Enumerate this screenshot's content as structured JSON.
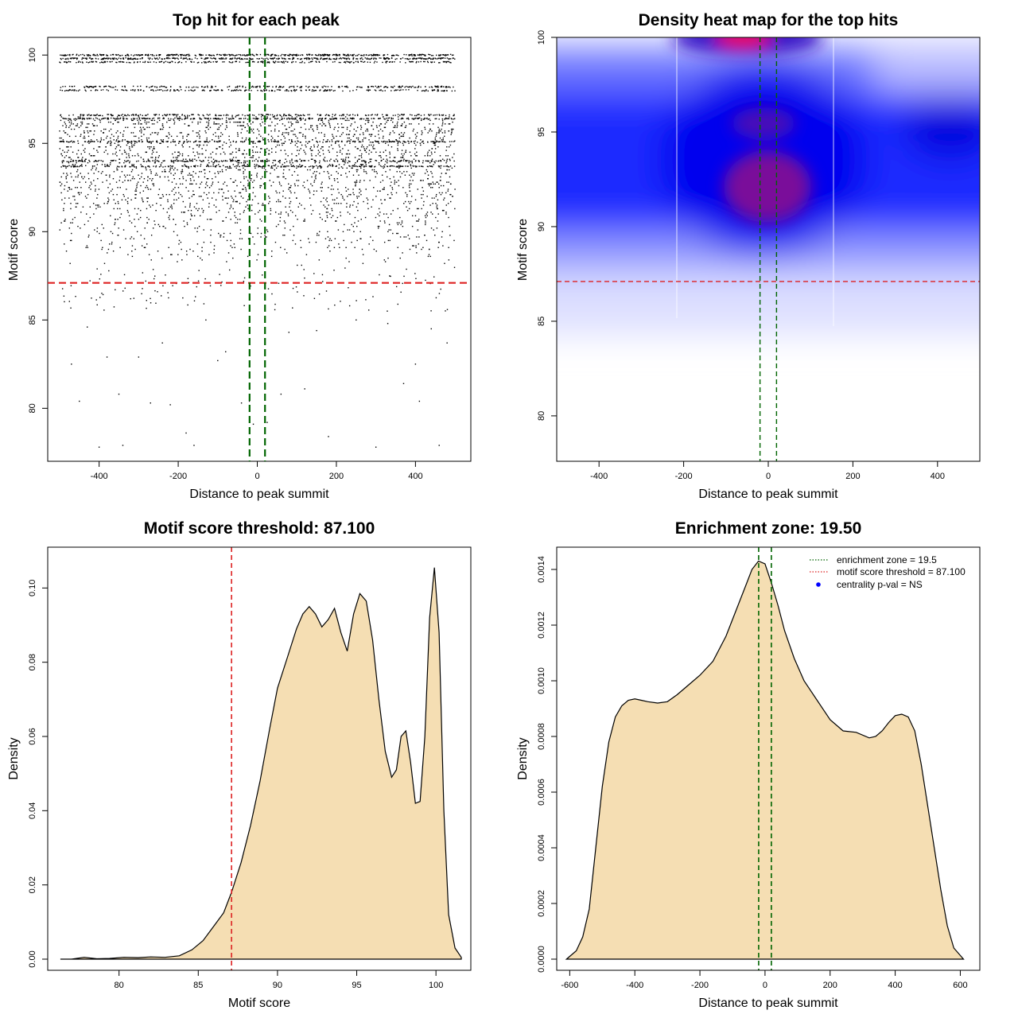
{
  "chart_data": [
    {
      "type": "scatter",
      "title": "Top hit for each peak",
      "xlabel": "Distance to peak summit",
      "ylabel": "Motif score",
      "xlim": [
        -530,
        540
      ],
      "ylim": [
        77,
        101
      ],
      "x_ticks": [
        -400,
        -200,
        0,
        200,
        400
      ],
      "y_ticks": [
        80,
        85,
        90,
        95,
        100
      ],
      "threshold_line": {
        "axis": "y",
        "value": 87.1,
        "color": "#dd2222"
      },
      "zone_lines": {
        "axis": "x",
        "values": [
          -19.5,
          19.5
        ],
        "color": "#006400"
      },
      "points_summary": {
        "x_range": [
          -500,
          500
        ],
        "dense_score_rows": [
          100,
          99.8,
          99.6,
          98.2,
          98.0,
          96.6,
          96.4,
          95.1,
          94.0,
          93.7
        ],
        "band_score_range": [
          88,
          96.5
        ],
        "sparse_points": [
          [
            -400,
            77.8
          ],
          [
            -340,
            77.9
          ],
          [
            -270,
            80.3
          ],
          [
            -220,
            80.2
          ],
          [
            -180,
            78.6
          ],
          [
            -160,
            77.9
          ],
          [
            -100,
            82.7
          ],
          [
            -80,
            83.2
          ],
          [
            -40,
            80.3
          ],
          [
            -20,
            80.4
          ],
          [
            -10,
            79.1
          ],
          [
            25,
            79.2
          ],
          [
            60,
            80.8
          ],
          [
            120,
            81.1
          ],
          [
            180,
            78.4
          ],
          [
            300,
            77.8
          ],
          [
            370,
            81.4
          ],
          [
            410,
            80.4
          ],
          [
            460,
            77.9
          ],
          [
            -470,
            82.5
          ],
          [
            -450,
            80.4
          ],
          [
            -430,
            84.6
          ],
          [
            -380,
            82.9
          ],
          [
            -350,
            80.8
          ],
          [
            -300,
            82.9
          ],
          [
            -240,
            83.7
          ],
          [
            -130,
            85.0
          ],
          [
            80,
            84.3
          ],
          [
            150,
            84.4
          ],
          [
            250,
            85.0
          ],
          [
            330,
            84.8
          ],
          [
            400,
            82.5
          ],
          [
            440,
            84.5
          ],
          [
            480,
            83.7
          ]
        ]
      }
    },
    {
      "type": "heatmap",
      "title": "Density heat map for the top hits",
      "xlabel": "Distance to peak summit",
      "ylabel": "Motif score",
      "xlim": [
        -500,
        500
      ],
      "ylim": [
        77.6,
        100
      ],
      "x_ticks": [
        -400,
        -200,
        0,
        200,
        400
      ],
      "y_ticks": [
        80,
        85,
        90,
        95,
        100
      ],
      "threshold_line": {
        "axis": "y",
        "value": 87.1,
        "color": "#dd2222"
      },
      "zone_lines": {
        "axis": "x",
        "values": [
          -19.5,
          19.5
        ],
        "color": "#006400"
      },
      "colors": [
        "#ffffff",
        "#0000ff",
        "#ff0000"
      ]
    },
    {
      "type": "area",
      "title": "Motif score threshold: 87.100",
      "xlabel": "Motif score",
      "ylabel": "Density",
      "xlim": [
        75.5,
        102.2
      ],
      "ylim": [
        -0.003,
        0.111
      ],
      "x_ticks": [
        80,
        85,
        90,
        95,
        100
      ],
      "y_ticks": [
        0.0,
        0.02,
        0.04,
        0.06,
        0.08,
        0.1
      ],
      "y_tick_labels": [
        "0.00",
        "0.02",
        "0.04",
        "0.06",
        "0.08",
        "0.10"
      ],
      "fill": "#f5deb3",
      "threshold_line": {
        "axis": "x",
        "value": 87.1,
        "color": "#dd2222"
      },
      "x": [
        76.3,
        77.0,
        77.8,
        78.6,
        79.4,
        80.3,
        81.2,
        82.0,
        82.9,
        83.8,
        84.6,
        85.3,
        86.0,
        86.6,
        87.1,
        87.7,
        88.3,
        88.9,
        89.5,
        90.0,
        90.6,
        91.2,
        91.6,
        92.0,
        92.4,
        92.8,
        93.2,
        93.6,
        94.0,
        94.4,
        94.8,
        95.2,
        95.6,
        96.0,
        96.4,
        96.8,
        97.2,
        97.5,
        97.8,
        98.1,
        98.4,
        98.7,
        99.0,
        99.3,
        99.6,
        99.9,
        100.2,
        100.5,
        100.8,
        101.2,
        101.6
      ],
      "y": [
        0.0,
        0.0,
        0.0005,
        0.0001,
        0.0002,
        0.0005,
        0.0004,
        0.0006,
        0.0005,
        0.0009,
        0.0025,
        0.005,
        0.009,
        0.0125,
        0.018,
        0.026,
        0.036,
        0.048,
        0.062,
        0.073,
        0.081,
        0.089,
        0.093,
        0.095,
        0.093,
        0.0895,
        0.0915,
        0.0945,
        0.088,
        0.083,
        0.093,
        0.0985,
        0.0965,
        0.086,
        0.07,
        0.056,
        0.049,
        0.051,
        0.06,
        0.0615,
        0.053,
        0.042,
        0.0425,
        0.06,
        0.092,
        0.1055,
        0.088,
        0.04,
        0.012,
        0.003,
        0.0005
      ]
    },
    {
      "type": "area",
      "title": "Enrichment zone: 19.50",
      "xlabel": "Distance to peak summit",
      "ylabel": "Density",
      "xlim": [
        -640,
        660
      ],
      "ylim": [
        -4e-05,
        0.00148
      ],
      "x_ticks": [
        -600,
        -400,
        -200,
        0,
        200,
        400,
        600
      ],
      "y_ticks": [
        0.0,
        0.0002,
        0.0004,
        0.0006,
        0.0008,
        0.001,
        0.0012,
        0.0014
      ],
      "y_tick_labels": [
        "0.0000",
        "0.0002",
        "0.0004",
        "0.0006",
        "0.0008",
        "0.0010",
        "0.0012",
        "0.0014"
      ],
      "fill": "#f5deb3",
      "zone_lines": {
        "axis": "x",
        "values": [
          -19.5,
          19.5
        ],
        "color": "#006400"
      },
      "x": [
        -610,
        -580,
        -560,
        -540,
        -520,
        -500,
        -480,
        -460,
        -440,
        -420,
        -400,
        -380,
        -360,
        -330,
        -300,
        -270,
        -240,
        -200,
        -160,
        -120,
        -90,
        -60,
        -40,
        -20,
        0,
        20,
        40,
        60,
        90,
        120,
        160,
        200,
        240,
        280,
        320,
        340,
        360,
        380,
        400,
        420,
        440,
        460,
        480,
        500,
        520,
        540,
        560,
        580,
        610
      ],
      "y": [
        0.0,
        3e-05,
        8e-05,
        0.00018,
        0.0004,
        0.00062,
        0.00078,
        0.00087,
        0.00091,
        0.00093,
        0.000935,
        0.00093,
        0.000925,
        0.00092,
        0.000925,
        0.00095,
        0.00098,
        0.00102,
        0.00107,
        0.00116,
        0.00125,
        0.00134,
        0.0014,
        0.00143,
        0.00142,
        0.00135,
        0.00127,
        0.00118,
        0.00108,
        0.001,
        0.00093,
        0.00086,
        0.00082,
        0.000815,
        0.000795,
        0.0008,
        0.00082,
        0.00085,
        0.000875,
        0.00088,
        0.00087,
        0.00082,
        0.0007,
        0.00055,
        0.0004,
        0.00025,
        0.00012,
        4e-05,
        0.0
      ],
      "legend": {
        "position": "top-right",
        "entries": [
          {
            "label": "enrichment zone = 19.5",
            "color": "#006400",
            "symbol": "dotted-line"
          },
          {
            "label": "motif score threshold = 87.100",
            "color": "#dd2222",
            "symbol": "dotted-line"
          },
          {
            "label": "centrality p-val = NS",
            "color": "#0000ff",
            "symbol": "dot"
          }
        ]
      }
    }
  ]
}
